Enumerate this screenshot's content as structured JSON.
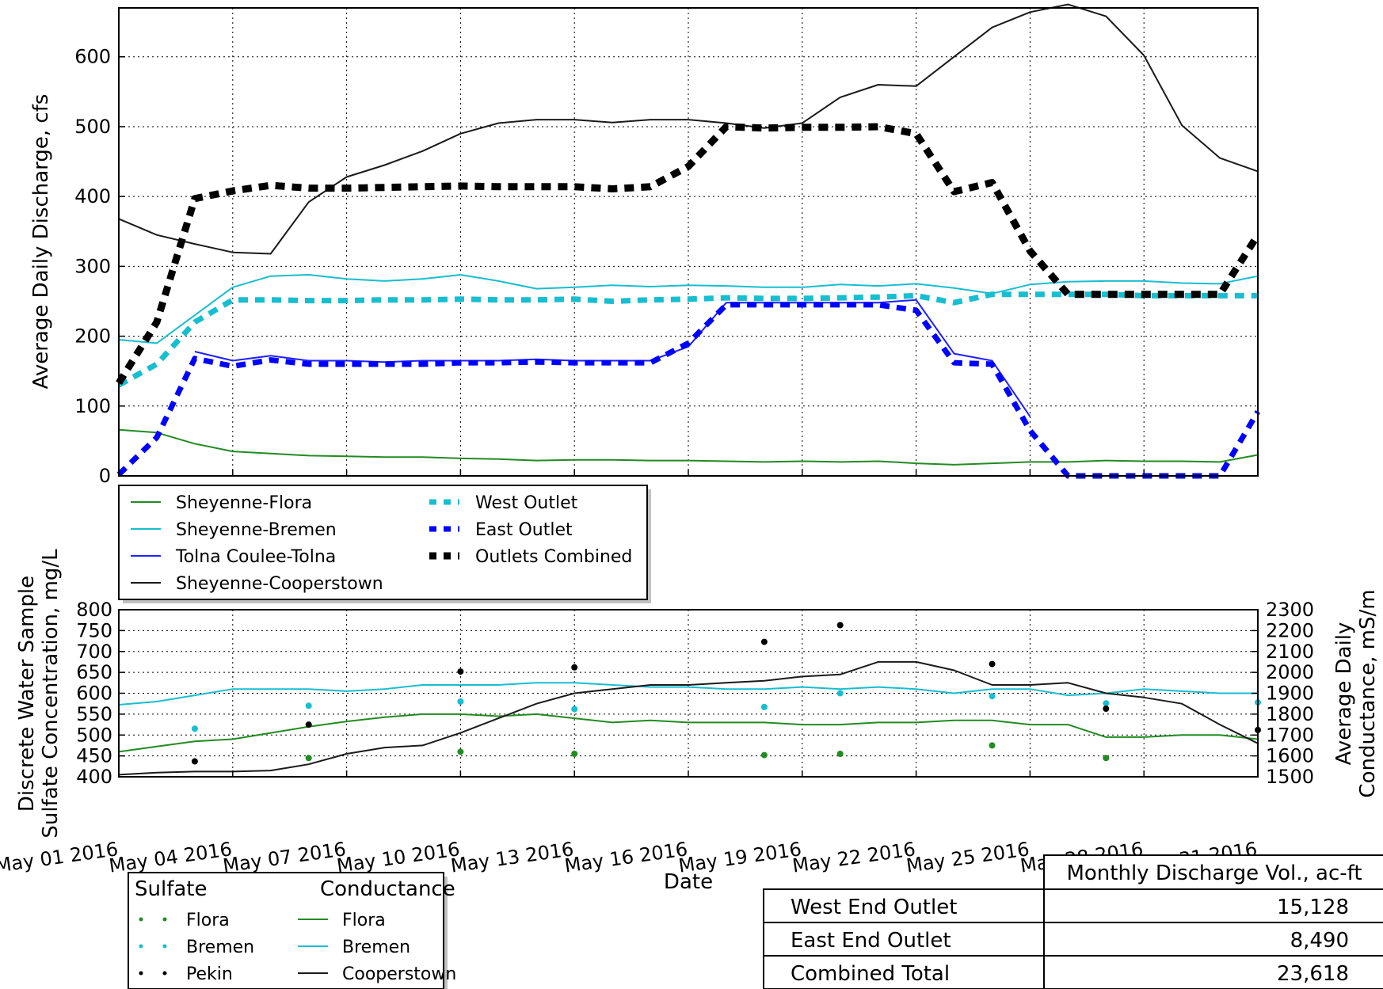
{
  "chart_data": [
    {
      "type": "line",
      "panel": "discharge",
      "title": "",
      "xlabel": "",
      "ylabel": "Average Daily Discharge, cfs",
      "xlim": [
        "2016-05-01",
        "2016-05-31"
      ],
      "ylim": [
        0,
        670
      ],
      "y_ticks": [
        0,
        100,
        200,
        300,
        400,
        500,
        600
      ],
      "grid": true,
      "legend_position": "below-left",
      "series": [
        {
          "name": "Sheyenne-Flora",
          "color": "#228b22",
          "style": "solid",
          "x": [
            "2016-05-01",
            "2016-05-02",
            "2016-05-03",
            "2016-05-04",
            "2016-05-05",
            "2016-05-06",
            "2016-05-07",
            "2016-05-08",
            "2016-05-09",
            "2016-05-10",
            "2016-05-11",
            "2016-05-12",
            "2016-05-13",
            "2016-05-14",
            "2016-05-15",
            "2016-05-16",
            "2016-05-17",
            "2016-05-18",
            "2016-05-19",
            "2016-05-20",
            "2016-05-21",
            "2016-05-22",
            "2016-05-23",
            "2016-05-24",
            "2016-05-25",
            "2016-05-26",
            "2016-05-27",
            "2016-05-28",
            "2016-05-29",
            "2016-05-30",
            "2016-05-31"
          ],
          "y": [
            66,
            62,
            46,
            35,
            32,
            29,
            28,
            27,
            27,
            25,
            24,
            22,
            23,
            23,
            22,
            22,
            21,
            20,
            21,
            20,
            21,
            18,
            16,
            18,
            20,
            20,
            22,
            21,
            21,
            20,
            30
          ]
        },
        {
          "name": "Sheyenne-Bremen",
          "color": "#17becf",
          "style": "solid",
          "x": [
            "2016-05-01",
            "2016-05-02",
            "2016-05-03",
            "2016-05-04",
            "2016-05-05",
            "2016-05-06",
            "2016-05-07",
            "2016-05-08",
            "2016-05-09",
            "2016-05-10",
            "2016-05-11",
            "2016-05-12",
            "2016-05-13",
            "2016-05-14",
            "2016-05-15",
            "2016-05-16",
            "2016-05-17",
            "2016-05-18",
            "2016-05-19",
            "2016-05-20",
            "2016-05-21",
            "2016-05-22",
            "2016-05-23",
            "2016-05-24",
            "2016-05-25",
            "2016-05-26",
            "2016-05-27",
            "2016-05-28",
            "2016-05-29",
            "2016-05-30",
            "2016-05-31"
          ],
          "y": [
            195,
            190,
            230,
            270,
            286,
            288,
            282,
            279,
            282,
            288,
            279,
            268,
            270,
            273,
            271,
            273,
            272,
            270,
            270,
            274,
            272,
            275,
            269,
            261,
            274,
            278,
            279,
            279,
            276,
            275,
            286
          ]
        },
        {
          "name": "Tolna Coulee-Tolna",
          "color": "#1f1fff",
          "style": "solid",
          "x": [
            "2016-05-03",
            "2016-05-04",
            "2016-05-05",
            "2016-05-06",
            "2016-05-07",
            "2016-05-08",
            "2016-05-09",
            "2016-05-10",
            "2016-05-11",
            "2016-05-12",
            "2016-05-13",
            "2016-05-14",
            "2016-05-15",
            "2016-05-16",
            "2016-05-17",
            "2016-05-18",
            "2016-05-19",
            "2016-05-20",
            "2016-05-21",
            "2016-05-22",
            "2016-05-23",
            "2016-05-24",
            "2016-05-25"
          ],
          "y": [
            178,
            165,
            172,
            165,
            165,
            163,
            165,
            165,
            165,
            167,
            165,
            165,
            165,
            185,
            248,
            248,
            248,
            248,
            248,
            252,
            175,
            165,
            85
          ]
        },
        {
          "name": "Sheyenne-Cooperstown",
          "color": "#1a1a1a",
          "style": "solid",
          "x": [
            "2016-05-01",
            "2016-05-02",
            "2016-05-03",
            "2016-05-04",
            "2016-05-05",
            "2016-05-06",
            "2016-05-07",
            "2016-05-08",
            "2016-05-09",
            "2016-05-10",
            "2016-05-11",
            "2016-05-12",
            "2016-05-13",
            "2016-05-14",
            "2016-05-15",
            "2016-05-16",
            "2016-05-17",
            "2016-05-18",
            "2016-05-19",
            "2016-05-20",
            "2016-05-21",
            "2016-05-22",
            "2016-05-23",
            "2016-05-24",
            "2016-05-25",
            "2016-05-26",
            "2016-05-27",
            "2016-05-28",
            "2016-05-29",
            "2016-05-30",
            "2016-05-31"
          ],
          "y": [
            368,
            345,
            332,
            320,
            318,
            392,
            428,
            445,
            465,
            490,
            505,
            510,
            510,
            506,
            510,
            510,
            505,
            498,
            505,
            542,
            560,
            558,
            600,
            642,
            664,
            675,
            658,
            602,
            502,
            455,
            436
          ]
        },
        {
          "name": "West Outlet",
          "color": "#17becf",
          "style": "dashed",
          "x": [
            "2016-05-01",
            "2016-05-02",
            "2016-05-03",
            "2016-05-04",
            "2016-05-05",
            "2016-05-06",
            "2016-05-07",
            "2016-05-08",
            "2016-05-09",
            "2016-05-10",
            "2016-05-11",
            "2016-05-12",
            "2016-05-13",
            "2016-05-14",
            "2016-05-15",
            "2016-05-16",
            "2016-05-17",
            "2016-05-18",
            "2016-05-19",
            "2016-05-20",
            "2016-05-21",
            "2016-05-22",
            "2016-05-23",
            "2016-05-24",
            "2016-05-25",
            "2016-05-26",
            "2016-05-27",
            "2016-05-28",
            "2016-05-29",
            "2016-05-30",
            "2016-05-31"
          ],
          "y": [
            130,
            160,
            220,
            252,
            252,
            251,
            251,
            252,
            252,
            253,
            252,
            252,
            253,
            250,
            252,
            253,
            255,
            254,
            254,
            255,
            256,
            258,
            248,
            260,
            260,
            260,
            260,
            258,
            258,
            258,
            258
          ]
        },
        {
          "name": "East Outlet",
          "color": "#0000ff",
          "style": "dashed",
          "x": [
            "2016-05-01",
            "2016-05-02",
            "2016-05-03",
            "2016-05-04",
            "2016-05-05",
            "2016-05-06",
            "2016-05-07",
            "2016-05-08",
            "2016-05-09",
            "2016-05-10",
            "2016-05-11",
            "2016-05-12",
            "2016-05-13",
            "2016-05-14",
            "2016-05-15",
            "2016-05-16",
            "2016-05-17",
            "2016-05-18",
            "2016-05-19",
            "2016-05-20",
            "2016-05-21",
            "2016-05-22",
            "2016-05-23",
            "2016-05-24",
            "2016-05-25",
            "2016-05-26",
            "2016-05-27",
            "2016-05-28",
            "2016-05-29",
            "2016-05-30",
            "2016-05-31"
          ],
          "y": [
            2,
            55,
            168,
            157,
            166,
            160,
            160,
            160,
            160,
            162,
            162,
            163,
            162,
            162,
            162,
            190,
            245,
            245,
            245,
            245,
            245,
            237,
            162,
            160,
            65,
            0,
            0,
            0,
            0,
            0,
            92
          ]
        },
        {
          "name": "Outlets Combined",
          "color": "#000000",
          "style": "dashed",
          "x": [
            "2016-05-01",
            "2016-05-02",
            "2016-05-03",
            "2016-05-04",
            "2016-05-05",
            "2016-05-06",
            "2016-05-07",
            "2016-05-08",
            "2016-05-09",
            "2016-05-10",
            "2016-05-11",
            "2016-05-12",
            "2016-05-13",
            "2016-05-14",
            "2016-05-15",
            "2016-05-16",
            "2016-05-17",
            "2016-05-18",
            "2016-05-19",
            "2016-05-20",
            "2016-05-21",
            "2016-05-22",
            "2016-05-23",
            "2016-05-24",
            "2016-05-25",
            "2016-05-26",
            "2016-05-27",
            "2016-05-28",
            "2016-05-29",
            "2016-05-30",
            "2016-05-31"
          ],
          "y": [
            133,
            220,
            397,
            408,
            416,
            412,
            412,
            413,
            414,
            415,
            414,
            414,
            414,
            411,
            414,
            443,
            500,
            498,
            499,
            499,
            500,
            490,
            407,
            420,
            322,
            260,
            260,
            260,
            260,
            260,
            345
          ]
        }
      ]
    },
    {
      "type": "scatter",
      "panel": "water-quality",
      "title": "",
      "xlabel": "Date",
      "ylabel": "Discrete Water Sample\nSulfate Concentration, mg/L",
      "y2label": "Average Daily\nConductance, mS/m",
      "xlim": [
        "2016-05-01",
        "2016-05-31"
      ],
      "x_tick_labels": [
        "May 01 2016",
        "May 04 2016",
        "May 07 2016",
        "May 10 2016",
        "May 13 2016",
        "May 16 2016",
        "May 19 2016",
        "May 22 2016",
        "May 25 2016",
        "May 28 2016",
        "May 31 2016"
      ],
      "ylim": [
        400,
        800
      ],
      "y_ticks": [
        400,
        450,
        500,
        550,
        600,
        650,
        700,
        750,
        800
      ],
      "y2lim": [
        1500,
        2300
      ],
      "y2_ticks": [
        1500,
        1600,
        1700,
        1800,
        1900,
        2000,
        2100,
        2200,
        2300
      ],
      "grid": true,
      "legend_position": "below-left",
      "legend_headers": {
        "sulfate": "Sulfate",
        "conductance": "Conductance"
      },
      "sulfate_series": [
        {
          "name": "Flora",
          "color": "#228b22",
          "x": [
            "2016-05-06",
            "2016-05-10",
            "2016-05-13",
            "2016-05-18",
            "2016-05-20",
            "2016-05-24",
            "2016-05-27"
          ],
          "y": [
            445,
            460,
            455,
            452,
            455,
            475,
            445
          ]
        },
        {
          "name": "Bremen",
          "color": "#17becf",
          "x": [
            "2016-05-03",
            "2016-05-06",
            "2016-05-10",
            "2016-05-13",
            "2016-05-18",
            "2016-05-20",
            "2016-05-24",
            "2016-05-27",
            "2016-05-31"
          ],
          "y": [
            515,
            570,
            580,
            562,
            567,
            600,
            593,
            576,
            578
          ]
        },
        {
          "name": "Pekin",
          "color": "#000000",
          "x": [
            "2016-05-03",
            "2016-05-06",
            "2016-05-10",
            "2016-05-13",
            "2016-05-18",
            "2016-05-20",
            "2016-05-24",
            "2016-05-27",
            "2016-05-31"
          ],
          "y": [
            437,
            525,
            652,
            662,
            723,
            763,
            670,
            563,
            512
          ]
        }
      ],
      "conductance_series": [
        {
          "name": "Flora",
          "color": "#228b22",
          "x": [
            "2016-05-01",
            "2016-05-02",
            "2016-05-03",
            "2016-05-04",
            "2016-05-05",
            "2016-05-06",
            "2016-05-07",
            "2016-05-08",
            "2016-05-09",
            "2016-05-10",
            "2016-05-11",
            "2016-05-12",
            "2016-05-13",
            "2016-05-14",
            "2016-05-15",
            "2016-05-16",
            "2016-05-17",
            "2016-05-18",
            "2016-05-19",
            "2016-05-20",
            "2016-05-21",
            "2016-05-22",
            "2016-05-23",
            "2016-05-24",
            "2016-05-25",
            "2016-05-26",
            "2016-05-27",
            "2016-05-28",
            "2016-05-29",
            "2016-05-30",
            "2016-05-31"
          ],
          "y": [
            1620,
            1645,
            1670,
            1680,
            1710,
            1740,
            1765,
            1785,
            1800,
            1800,
            1790,
            1800,
            1780,
            1760,
            1770,
            1760,
            1760,
            1760,
            1750,
            1750,
            1760,
            1760,
            1770,
            1770,
            1750,
            1750,
            1690,
            1690,
            1700,
            1700,
            1680
          ]
        },
        {
          "name": "Bremen",
          "color": "#17becf",
          "x": [
            "2016-05-01",
            "2016-05-02",
            "2016-05-03",
            "2016-05-04",
            "2016-05-05",
            "2016-05-06",
            "2016-05-07",
            "2016-05-08",
            "2016-05-09",
            "2016-05-10",
            "2016-05-11",
            "2016-05-12",
            "2016-05-13",
            "2016-05-14",
            "2016-05-15",
            "2016-05-16",
            "2016-05-17",
            "2016-05-18",
            "2016-05-19",
            "2016-05-20",
            "2016-05-21",
            "2016-05-22",
            "2016-05-23",
            "2016-05-24",
            "2016-05-25",
            "2016-05-26",
            "2016-05-27",
            "2016-05-28",
            "2016-05-29",
            "2016-05-30",
            "2016-05-31"
          ],
          "y": [
            1845,
            1860,
            1890,
            1920,
            1920,
            1920,
            1910,
            1920,
            1940,
            1940,
            1940,
            1950,
            1950,
            1940,
            1930,
            1930,
            1920,
            1920,
            1930,
            1920,
            1930,
            1920,
            1900,
            1920,
            1920,
            1890,
            1900,
            1920,
            1910,
            1900,
            1900
          ]
        },
        {
          "name": "Cooperstown",
          "color": "#1a1a1a",
          "x": [
            "2016-05-01",
            "2016-05-02",
            "2016-05-03",
            "2016-05-04",
            "2016-05-05",
            "2016-05-06",
            "2016-05-07",
            "2016-05-08",
            "2016-05-09",
            "2016-05-10",
            "2016-05-11",
            "2016-05-12",
            "2016-05-13",
            "2016-05-14",
            "2016-05-15",
            "2016-05-16",
            "2016-05-17",
            "2016-05-18",
            "2016-05-19",
            "2016-05-20",
            "2016-05-21",
            "2016-05-22",
            "2016-05-23",
            "2016-05-24",
            "2016-05-25",
            "2016-05-26",
            "2016-05-27",
            "2016-05-28",
            "2016-05-29",
            "2016-05-30",
            "2016-05-31"
          ],
          "y": [
            1510,
            1520,
            1525,
            1525,
            1530,
            1560,
            1610,
            1640,
            1650,
            1710,
            1780,
            1850,
            1900,
            1920,
            1940,
            1940,
            1950,
            1960,
            1980,
            1990,
            2050,
            2050,
            2010,
            1940,
            1940,
            1950,
            1900,
            1880,
            1850,
            1750,
            1660
          ]
        }
      ]
    }
  ],
  "summary_table": {
    "column_header": "Monthly Discharge Vol., ac-ft",
    "rows": [
      {
        "label": "West End Outlet",
        "value": "15,128"
      },
      {
        "label": "East End Outlet",
        "value": "8,490"
      },
      {
        "label": "Combined Total",
        "value": "23,618"
      }
    ]
  }
}
